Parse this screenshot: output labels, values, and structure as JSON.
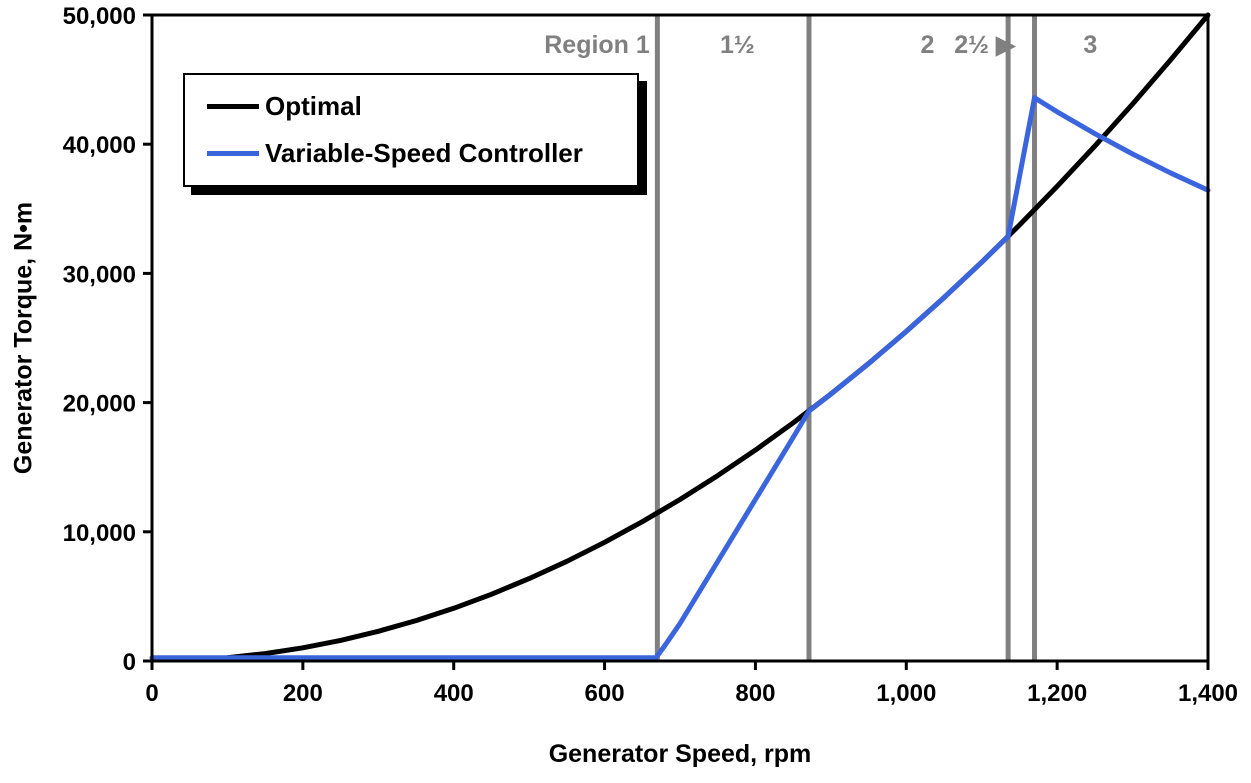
{
  "chart_data": {
    "type": "line",
    "title": "",
    "xlabel": "Generator Speed, rpm",
    "ylabel": "Generator Torque, N•m",
    "xlim": [
      0,
      1400
    ],
    "ylim": [
      0,
      50000
    ],
    "grid": false,
    "legend_position": "top-left",
    "x_ticks": [
      {
        "value": 0,
        "label": "0"
      },
      {
        "value": 200,
        "label": "200"
      },
      {
        "value": 400,
        "label": "400"
      },
      {
        "value": 600,
        "label": "600"
      },
      {
        "value": 800,
        "label": "800"
      },
      {
        "value": 1000,
        "label": "1,000"
      },
      {
        "value": 1200,
        "label": "1,200"
      },
      {
        "value": 1400,
        "label": "1,400"
      }
    ],
    "y_ticks": [
      {
        "value": 0,
        "label": "0"
      },
      {
        "value": 10000,
        "label": "10,000"
      },
      {
        "value": 20000,
        "label": "20,000"
      },
      {
        "value": 30000,
        "label": "30,000"
      },
      {
        "value": 40000,
        "label": "40,000"
      },
      {
        "value": 50000,
        "label": "50,000"
      }
    ],
    "region_boundaries_rpm": [
      670,
      871,
      1135,
      1170
    ],
    "region_line_color": "#808080",
    "region_label_color": "#808080",
    "region_labels": [
      {
        "text": "Region 1",
        "rpm": 590
      },
      {
        "text": "1½",
        "rpm": 776
      },
      {
        "text": "2",
        "rpm": 1028
      },
      {
        "text": "2½ ▶",
        "rpm": 1104
      },
      {
        "text": "3",
        "rpm": 1244
      }
    ],
    "series": [
      {
        "name": "Optimal",
        "color": "#000000",
        "width": 5,
        "points": [
          [
            100,
            255
          ],
          [
            150,
            574
          ],
          [
            200,
            1020
          ],
          [
            250,
            1594
          ],
          [
            300,
            2296
          ],
          [
            350,
            3125
          ],
          [
            400,
            4082
          ],
          [
            450,
            5166
          ],
          [
            500,
            6378
          ],
          [
            550,
            7717
          ],
          [
            600,
            9184
          ],
          [
            650,
            10778
          ],
          [
            700,
            12500
          ],
          [
            750,
            14349
          ],
          [
            800,
            16327
          ],
          [
            850,
            18431
          ],
          [
            900,
            20664
          ],
          [
            950,
            23023
          ],
          [
            1000,
            25510
          ],
          [
            1050,
            28125
          ],
          [
            1100,
            30867
          ],
          [
            1150,
            33737
          ],
          [
            1200,
            36735
          ],
          [
            1250,
            39860
          ],
          [
            1300,
            43112
          ],
          [
            1350,
            46492
          ],
          [
            1400,
            50000
          ]
        ]
      },
      {
        "name": "Variable-Speed Controller",
        "color": "#3A65DD",
        "width": 5,
        "points": [
          [
            0,
            250
          ],
          [
            300,
            250
          ],
          [
            600,
            250
          ],
          [
            668,
            250
          ],
          [
            680,
            1200
          ],
          [
            700,
            2900
          ],
          [
            750,
            7700
          ],
          [
            800,
            12500
          ],
          [
            850,
            17300
          ],
          [
            871,
            19350
          ],
          [
            900,
            20660
          ],
          [
            950,
            23020
          ],
          [
            1000,
            25510
          ],
          [
            1050,
            28130
          ],
          [
            1100,
            30870
          ],
          [
            1135,
            32860
          ],
          [
            1170,
            43600
          ],
          [
            1200,
            42510
          ],
          [
            1250,
            40810
          ],
          [
            1300,
            39240
          ],
          [
            1350,
            37790
          ],
          [
            1400,
            36440
          ]
        ]
      }
    ]
  },
  "legend": {
    "items": [
      {
        "label": "Optimal"
      },
      {
        "label": "Variable-Speed Controller"
      }
    ]
  }
}
